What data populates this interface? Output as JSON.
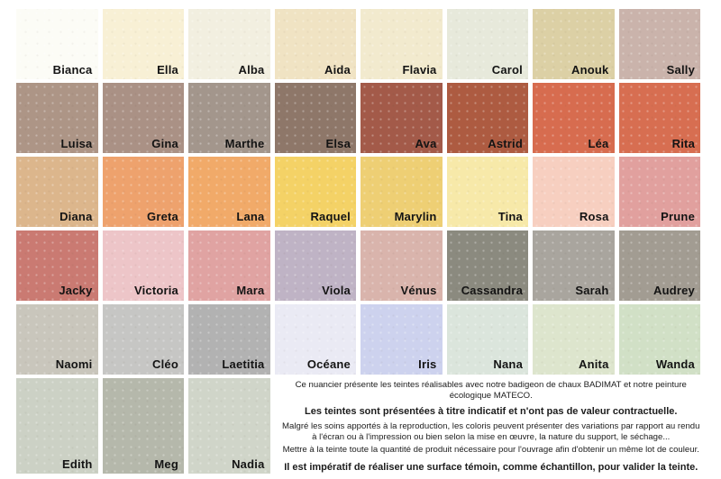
{
  "palette": {
    "rows": [
      {
        "swatches": [
          {
            "name": "Bianca",
            "color": "#fcfcf6"
          },
          {
            "name": "Ella",
            "color": "#f8f0d5"
          },
          {
            "name": "Alba",
            "color": "#f2efe0"
          },
          {
            "name": "Aida",
            "color": "#f0e3c3"
          },
          {
            "name": "Flavia",
            "color": "#f2eace"
          },
          {
            "name": "Carol",
            "color": "#e7e9db"
          },
          {
            "name": "Anouk",
            "color": "#dcd0a5"
          },
          {
            "name": "Sally",
            "color": "#cab3ab"
          }
        ]
      },
      {
        "swatches": [
          {
            "name": "Luisa",
            "color": "#ad9586"
          },
          {
            "name": "Gina",
            "color": "#aa9185"
          },
          {
            "name": "Marthe",
            "color": "#a3968c"
          },
          {
            "name": "Elsa",
            "color": "#8e7769"
          },
          {
            "name": "Ava",
            "color": "#a35a49"
          },
          {
            "name": "Astrid",
            "color": "#ad5b41"
          },
          {
            "name": "Léa",
            "color": "#d76c4f"
          },
          {
            "name": "Rita",
            "color": "#d76e51"
          }
        ]
      },
      {
        "swatches": [
          {
            "name": "Diana",
            "color": "#dcb68c"
          },
          {
            "name": "Greta",
            "color": "#eea26d"
          },
          {
            "name": "Lana",
            "color": "#f1aa69"
          },
          {
            "name": "Raquel",
            "color": "#f4d266"
          },
          {
            "name": "Marylin",
            "color": "#eecf74"
          },
          {
            "name": "Tina",
            "color": "#f7e9a9"
          },
          {
            "name": "Rosa",
            "color": "#f7cfc0"
          },
          {
            "name": "Prune",
            "color": "#e1a09e"
          }
        ]
      },
      {
        "swatches": [
          {
            "name": "Jacky",
            "color": "#ca7a72"
          },
          {
            "name": "Victoria",
            "color": "#edc5c8"
          },
          {
            "name": "Mara",
            "color": "#e0a3a2"
          },
          {
            "name": "Viola",
            "color": "#bfb3c5"
          },
          {
            "name": "Vénus",
            "color": "#d9b4ac"
          },
          {
            "name": "Cassandra",
            "color": "#8b8a7f"
          },
          {
            "name": "Sarah",
            "color": "#a9a59e"
          },
          {
            "name": "Audrey",
            "color": "#a29c92"
          }
        ]
      },
      {
        "swatches": [
          {
            "name": "Naomi",
            "color": "#c9c6bc"
          },
          {
            "name": "Cléo",
            "color": "#c6c6c4"
          },
          {
            "name": "Laetitia",
            "color": "#b2b2b2"
          },
          {
            "name": "Océane",
            "color": "#eaeaf4"
          },
          {
            "name": "Iris",
            "color": "#cdd2ee"
          },
          {
            "name": "Nana",
            "color": "#dbe5dc"
          },
          {
            "name": "Anita",
            "color": "#dde5cd"
          },
          {
            "name": "Wanda",
            "color": "#d1e0c6"
          }
        ]
      },
      {
        "swatches": [
          {
            "name": "Edith",
            "color": "#ccd1c5"
          },
          {
            "name": "Meg",
            "color": "#b5b8ab"
          },
          {
            "name": "Nadia",
            "color": "#d0d5c9"
          }
        ]
      }
    ]
  },
  "notice": {
    "line1": "Ce nuancier présente les teintes réalisables avec notre badigeon de chaux BADIMAT et notre peinture écologique MATECO.",
    "line2": "Les teintes sont présentées à titre indicatif et n'ont pas de valeur contractuelle.",
    "line3": "Malgré les soins apportés à la reproduction, les coloris peuvent présenter des variations par rapport au rendu à l'écran ou à l'impression ou bien selon la mise en œuvre, la nature du support, le séchage...",
    "line4": "Mettre à la teinte toute la quantité de produit nécessaire pour l'ouvrage afin d'obtenir un même lot de couleur.",
    "line5": "Il est impératif de réaliser une surface témoin, comme échantillon, pour valider la teinte."
  }
}
